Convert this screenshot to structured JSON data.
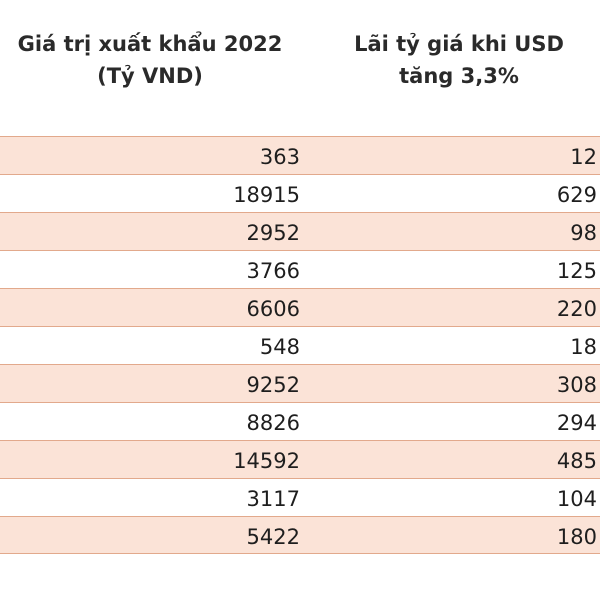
{
  "header": {
    "export_line1": "Giá trị xuất khẩu 2022",
    "export_line2": "(Tỷ VND)",
    "gain_line1": "Lãi tỷ giá khi USD",
    "gain_line2": "tăng 3,3%"
  },
  "rows": [
    {
      "export": "363",
      "gain": "12"
    },
    {
      "export": "18915",
      "gain": "629"
    },
    {
      "export": "2952",
      "gain": "98"
    },
    {
      "export": "3766",
      "gain": "125"
    },
    {
      "export": "6606",
      "gain": "220"
    },
    {
      "export": "548",
      "gain": "18"
    },
    {
      "export": "9252",
      "gain": "308"
    },
    {
      "export": "8826",
      "gain": "294"
    },
    {
      "export": "14592",
      "gain": "485"
    },
    {
      "export": "3117",
      "gain": "104"
    },
    {
      "export": "5422",
      "gain": "180"
    }
  ],
  "colors": {
    "shaded_row": "#fbe3d7",
    "border": "#e2a98c",
    "text": "#1e1e1e"
  }
}
